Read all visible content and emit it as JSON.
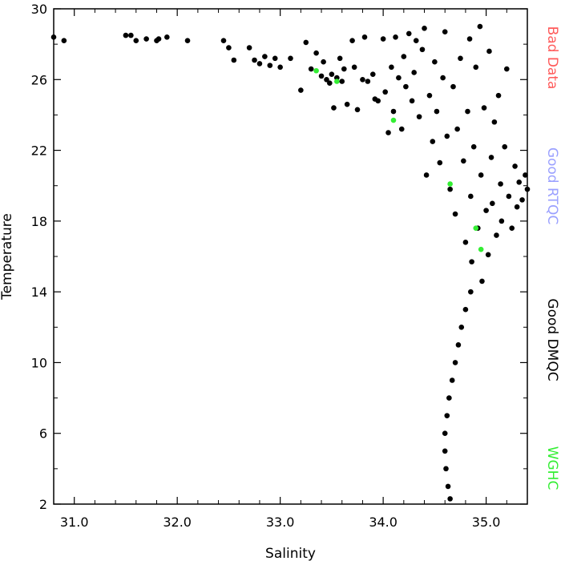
{
  "chart_data": {
    "type": "scatter",
    "xlabel": "Salinity",
    "ylabel": "Temperature",
    "xlim": [
      30.8,
      35.4
    ],
    "ylim": [
      2,
      30
    ],
    "x_ticks": [
      31.0,
      32.0,
      33.0,
      34.0,
      35.0
    ],
    "x_tick_labels": [
      "31.0",
      "32.0",
      "33.0",
      "34.0",
      "35.0"
    ],
    "y_ticks": [
      2,
      6,
      10,
      14,
      18,
      22,
      26,
      30
    ],
    "y_tick_labels": [
      "2",
      "6",
      "10",
      "14",
      "18",
      "22",
      "26",
      "30"
    ],
    "legend": [
      {
        "label": "Bad Data",
        "color": "#ff5a5a"
      },
      {
        "label": "Good RTQC",
        "color": "#9aa0ff"
      },
      {
        "label": "Good DMQC",
        "color": "#000000"
      },
      {
        "label": "WGHC",
        "color": "#33ee33"
      }
    ],
    "legend_placement": "right, outside plot, vertical text",
    "grid": false,
    "series": [
      {
        "name": "Good DMQC",
        "color": "#000000",
        "points": [
          [
            30.8,
            28.4
          ],
          [
            30.9,
            28.2
          ],
          [
            31.5,
            28.5
          ],
          [
            31.55,
            28.5
          ],
          [
            31.6,
            28.2
          ],
          [
            31.7,
            28.3
          ],
          [
            31.8,
            28.2
          ],
          [
            31.82,
            28.3
          ],
          [
            31.9,
            28.4
          ],
          [
            32.1,
            28.2
          ],
          [
            32.45,
            28.2
          ],
          [
            32.5,
            27.8
          ],
          [
            32.55,
            27.1
          ],
          [
            32.7,
            27.8
          ],
          [
            32.75,
            27.1
          ],
          [
            32.8,
            26.9
          ],
          [
            32.85,
            27.3
          ],
          [
            32.9,
            26.8
          ],
          [
            32.95,
            27.2
          ],
          [
            33.0,
            26.7
          ],
          [
            33.1,
            27.2
          ],
          [
            33.2,
            25.4
          ],
          [
            33.25,
            28.1
          ],
          [
            33.3,
            26.6
          ],
          [
            33.35,
            27.5
          ],
          [
            33.4,
            26.2
          ],
          [
            33.42,
            27.0
          ],
          [
            33.45,
            26.0
          ],
          [
            33.48,
            25.8
          ],
          [
            33.5,
            26.3
          ],
          [
            33.52,
            24.4
          ],
          [
            33.55,
            26.1
          ],
          [
            33.58,
            27.2
          ],
          [
            33.6,
            25.9
          ],
          [
            33.62,
            26.6
          ],
          [
            33.65,
            24.6
          ],
          [
            33.7,
            28.2
          ],
          [
            33.72,
            26.7
          ],
          [
            33.75,
            24.3
          ],
          [
            33.8,
            26.0
          ],
          [
            33.82,
            28.4
          ],
          [
            33.85,
            25.9
          ],
          [
            33.9,
            26.3
          ],
          [
            33.92,
            24.9
          ],
          [
            33.95,
            24.8
          ],
          [
            34.0,
            28.3
          ],
          [
            34.02,
            25.3
          ],
          [
            34.05,
            23.0
          ],
          [
            34.08,
            26.7
          ],
          [
            34.1,
            24.2
          ],
          [
            34.12,
            28.4
          ],
          [
            34.15,
            26.1
          ],
          [
            34.18,
            23.2
          ],
          [
            34.2,
            27.3
          ],
          [
            34.22,
            25.6
          ],
          [
            34.25,
            28.6
          ],
          [
            34.28,
            24.8
          ],
          [
            34.3,
            26.4
          ],
          [
            34.32,
            28.2
          ],
          [
            34.35,
            23.9
          ],
          [
            34.38,
            27.7
          ],
          [
            34.4,
            28.9
          ],
          [
            34.42,
            20.6
          ],
          [
            34.45,
            25.1
          ],
          [
            34.48,
            22.5
          ],
          [
            34.5,
            27.0
          ],
          [
            34.52,
            24.2
          ],
          [
            34.55,
            21.3
          ],
          [
            34.58,
            26.1
          ],
          [
            34.6,
            28.7
          ],
          [
            34.62,
            22.8
          ],
          [
            34.65,
            19.8
          ],
          [
            34.68,
            25.6
          ],
          [
            34.7,
            18.4
          ],
          [
            34.72,
            23.2
          ],
          [
            34.75,
            27.2
          ],
          [
            34.78,
            21.4
          ],
          [
            34.8,
            16.8
          ],
          [
            34.82,
            24.2
          ],
          [
            34.84,
            28.3
          ],
          [
            34.85,
            19.4
          ],
          [
            34.86,
            15.7
          ],
          [
            34.88,
            22.2
          ],
          [
            34.9,
            26.7
          ],
          [
            34.92,
            17.6
          ],
          [
            34.94,
            29.0
          ],
          [
            34.95,
            20.6
          ],
          [
            34.96,
            14.6
          ],
          [
            34.98,
            24.4
          ],
          [
            35.0,
            18.6
          ],
          [
            35.02,
            16.1
          ],
          [
            35.03,
            27.6
          ],
          [
            35.05,
            21.6
          ],
          [
            35.06,
            19.0
          ],
          [
            35.08,
            23.6
          ],
          [
            35.1,
            17.2
          ],
          [
            35.12,
            25.1
          ],
          [
            35.14,
            20.1
          ],
          [
            35.15,
            18.0
          ],
          [
            35.18,
            22.2
          ],
          [
            35.2,
            26.6
          ],
          [
            35.22,
            19.4
          ],
          [
            35.25,
            17.6
          ],
          [
            35.28,
            21.1
          ],
          [
            35.3,
            18.8
          ],
          [
            35.32,
            20.2
          ],
          [
            35.35,
            19.2
          ],
          [
            35.38,
            20.6
          ],
          [
            35.4,
            19.8
          ],
          [
            34.85,
            14.0
          ],
          [
            34.8,
            13.0
          ],
          [
            34.76,
            12.0
          ],
          [
            34.73,
            11.0
          ],
          [
            34.7,
            10.0
          ],
          [
            34.67,
            9.0
          ],
          [
            34.64,
            8.0
          ],
          [
            34.62,
            7.0
          ],
          [
            34.6,
            6.0
          ],
          [
            34.6,
            5.0
          ],
          [
            34.61,
            4.0
          ],
          [
            34.63,
            3.0
          ],
          [
            34.65,
            2.3
          ]
        ]
      },
      {
        "name": "WGHC",
        "color": "#33ee33",
        "points": [
          [
            33.35,
            26.5
          ],
          [
            33.55,
            25.9
          ],
          [
            34.1,
            23.7
          ],
          [
            34.65,
            20.1
          ],
          [
            34.9,
            17.6
          ],
          [
            34.95,
            16.4
          ]
        ]
      }
    ]
  }
}
